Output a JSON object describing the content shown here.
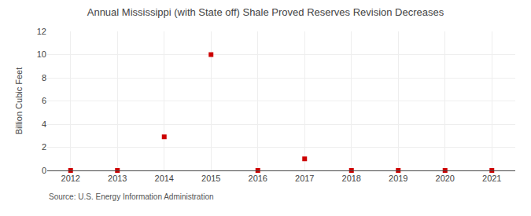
{
  "chart_data": {
    "type": "scatter",
    "title": "Annual Mississippi (with State off) Shale Proved Reserves Revision Decreases",
    "ylabel": "Billion Cubic Feet",
    "annotations": [
      "Source: U.S. Energy Information Administration"
    ],
    "x": [
      2012,
      2013,
      2014,
      2015,
      2016,
      2017,
      2018,
      2019,
      2020,
      2021
    ],
    "values": [
      0.0,
      0.0,
      2.9,
      10.0,
      0.0,
      1.0,
      0.0,
      0.0,
      0.0,
      0.0
    ],
    "color": "#cc0000",
    "marker": "square",
    "xlim": [
      2011.5,
      2021.5
    ],
    "xticks": [
      2012,
      2013,
      2014,
      2015,
      2016,
      2017,
      2018,
      2019,
      2020,
      2021
    ],
    "ylim": [
      0,
      12
    ],
    "yticks": [
      0,
      2,
      4,
      6,
      8,
      10,
      12
    ],
    "grid": true
  }
}
